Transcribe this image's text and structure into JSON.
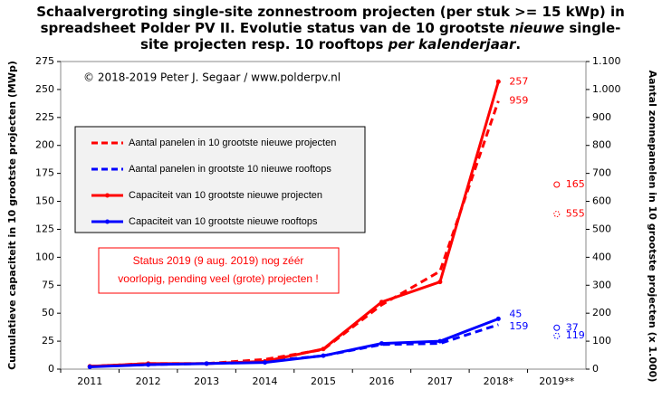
{
  "chart_data": {
    "type": "line",
    "title_parts": [
      {
        "text": "Schaalvergroting single-site zonnestroom projecten (per stuk >= 15 kWp) in spreadsheet Polder PV II. Evolutie status van de 10 grootste ",
        "italic": false
      },
      {
        "text": "nieuwe",
        "italic": true
      },
      {
        "text": " single-site projecten resp. 10 rooftops ",
        "italic": false
      },
      {
        "text": "per kalenderjaar",
        "italic": true
      },
      {
        "text": ".",
        "italic": false
      }
    ],
    "copyright": "© 2018-2019 Peter J. Segaar / www.polderpv.nl",
    "annotation": [
      "Status 2019 (9 aug. 2019) nog zéér",
      "voorlopig, pending veel (grote) projecten !"
    ],
    "ylabel": "Cumulatieve capaciteit in 10 grootste projecten (MWp)",
    "y2label": "Aantal zonnepanelen in 10 grootste projecten (x 1.000)",
    "categories": [
      "2011",
      "2012",
      "2013",
      "2014",
      "2015",
      "2016",
      "2017",
      "2018*",
      "2019**"
    ],
    "ylim": [
      0,
      275
    ],
    "yticks": [
      0,
      25,
      50,
      75,
      100,
      125,
      150,
      175,
      200,
      225,
      250,
      275
    ],
    "y2lim": [
      0,
      1100
    ],
    "y2ticks": [
      0,
      100,
      200,
      300,
      400,
      500,
      600,
      700,
      800,
      900,
      {
        "value": 1000,
        "label": "1.000"
      },
      {
        "value": 1100,
        "label": "1.100"
      }
    ],
    "grid": false,
    "series": [
      {
        "name": "Aantal panelen in 10 grootste nieuwe projecten",
        "color": "#ff0000",
        "dashed": true,
        "axis": "y2",
        "values": [
          10,
          20,
          20,
          35,
          70,
          230,
          350,
          959,
          null
        ],
        "status_2019_value": 555
      },
      {
        "name": "Aantal panelen in grootste 10 nieuwe rooftops",
        "color": "#0000ff",
        "dashed": true,
        "axis": "y2",
        "values": [
          10,
          16,
          20,
          28,
          48,
          88,
          92,
          159,
          null
        ],
        "status_2019_value": 119
      },
      {
        "name": "Capaciteit van 10 grootste nieuwe projecten",
        "color": "#ff0000",
        "dashed": false,
        "values": [
          2.5,
          5,
          5,
          7,
          18,
          60,
          78,
          257,
          null
        ],
        "status_2019_value": 165
      },
      {
        "name": "Capaciteit van 10 grootste nieuwe rooftops",
        "color": "#0000ff",
        "dashed": false,
        "values": [
          2,
          4,
          5,
          6,
          12,
          23,
          25,
          45,
          null
        ],
        "status_2019_value": 37
      }
    ]
  }
}
